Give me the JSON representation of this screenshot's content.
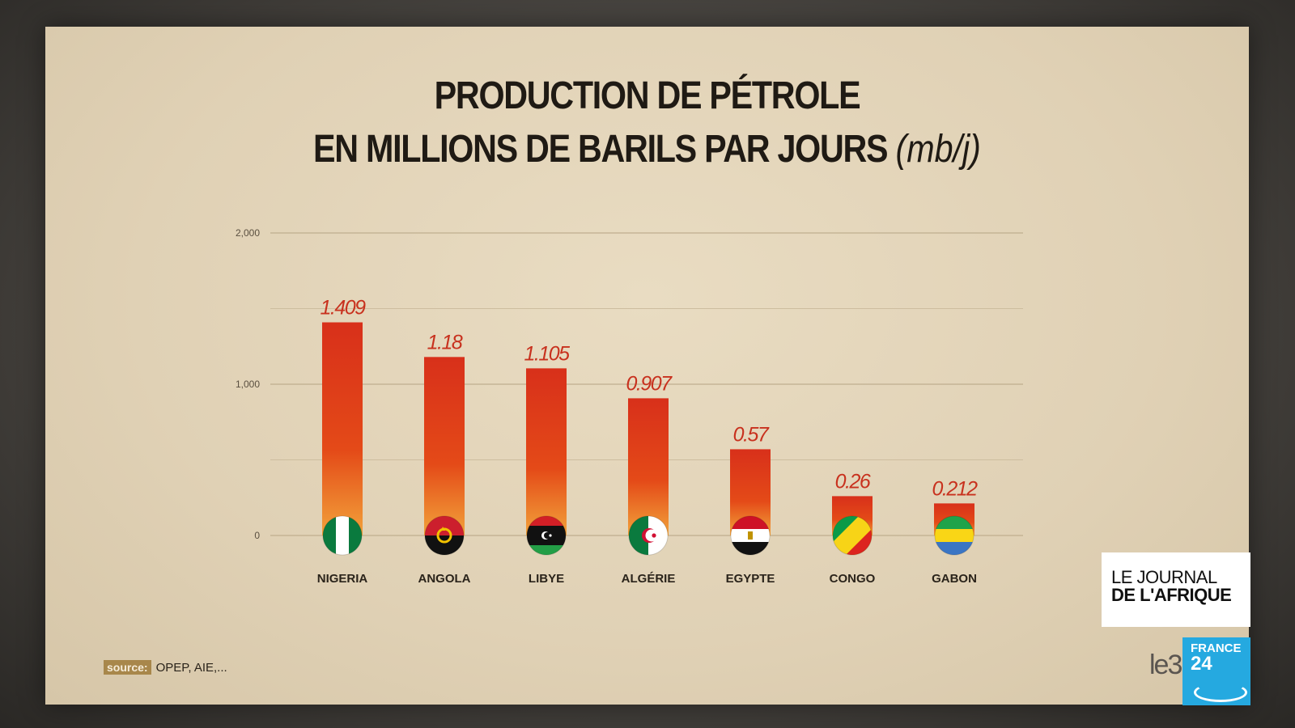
{
  "chart_data": {
    "type": "bar",
    "title": "PRODUCTION DE PÉTROLE",
    "subtitle": "EN MILLIONS DE BARILS PAR JOURS",
    "unit": "(mb/j)",
    "categories": [
      "NIGERIA",
      "ANGOLA",
      "LIBYE",
      "ALGÉRIE",
      "EGYPTE",
      "CONGO",
      "GABON"
    ],
    "values": [
      1.409,
      1.18,
      1.105,
      0.907,
      0.57,
      0.26,
      0.212
    ],
    "value_labels": [
      "1.409",
      "1.18",
      "1.105",
      "0.907",
      "0.57",
      "0.26",
      "0.212"
    ],
    "yticks": [
      {
        "value": 0,
        "label": "0"
      },
      {
        "value": 1,
        "label": "1,000"
      },
      {
        "value": 2,
        "label": "2,000"
      }
    ],
    "ylim": [
      0,
      2
    ],
    "grid": true,
    "bar_colors": {
      "top": "#d8301a",
      "mid": "#e44a18",
      "bottom": "#f2a23a"
    },
    "label_color": "#c8311e"
  },
  "source": {
    "tag": "source:",
    "text": "OPEP, AIE,..."
  },
  "branding": {
    "journal_line1": "LE JOURNAL",
    "journal_line2": "DE L'AFRIQUE",
    "f24_line1": "FRANCE",
    "f24_line2": "24",
    "corner_mark": "le3"
  },
  "flags": [
    "nigeria-flag-icon",
    "angola-flag-icon",
    "libya-flag-icon",
    "algeria-flag-icon",
    "egypt-flag-icon",
    "congo-flag-icon",
    "gabon-flag-icon"
  ]
}
